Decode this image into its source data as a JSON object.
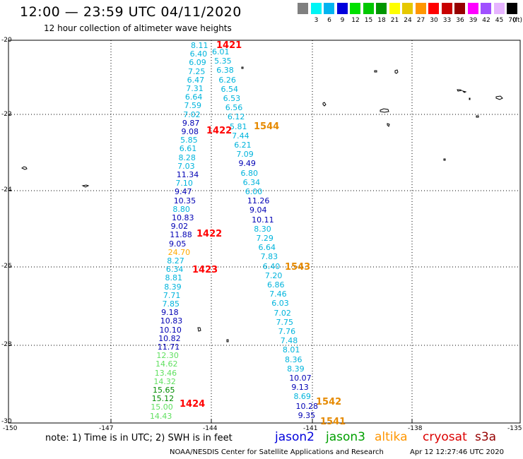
{
  "header": {
    "title": "12:00 — 23:59 UTC 04/11/2020",
    "subtitle": "12 hour collection of altimeter wave heights"
  },
  "scale": {
    "swatches": [
      {
        "color": "#808080",
        "label": ""
      },
      {
        "color": "#00f5f5",
        "label": "3"
      },
      {
        "color": "#00b4f0",
        "label": "6"
      },
      {
        "color": "#0000dc",
        "label": "9"
      },
      {
        "color": "#00e000",
        "label": "12"
      },
      {
        "color": "#00c800",
        "label": "15"
      },
      {
        "color": "#009600",
        "label": "18"
      },
      {
        "color": "#ffff00",
        "label": "21"
      },
      {
        "color": "#e6c800",
        "label": "24"
      },
      {
        "color": "#ff9600",
        "label": "27"
      },
      {
        "color": "#ff0000",
        "label": "30"
      },
      {
        "color": "#c80000",
        "label": "33"
      },
      {
        "color": "#960000",
        "label": "36"
      },
      {
        "color": "#ff00ff",
        "label": "39"
      },
      {
        "color": "#a050ff",
        "label": "42"
      },
      {
        "color": "#e6b4ff",
        "label": "45"
      },
      {
        "color": "#000000",
        "label": "70"
      }
    ],
    "unit": "(ft)"
  },
  "map": {
    "lat_labels": [
      "-20",
      "-22",
      "-24",
      "-26",
      "-28",
      "-30"
    ],
    "lon_labels": [
      "-150",
      "-147",
      "-144",
      "-141",
      "-138",
      "-135"
    ]
  },
  "track_colors": {
    "cyan": "#00b4dc",
    "navy": "#0000b4",
    "lightgreen": "#60e060",
    "green": "#008c00",
    "gold": "#ffaa00",
    "red": "#ff0000",
    "orange": "#e68a00"
  },
  "tracks": {
    "left": [
      {
        "v": "8.11",
        "c": "cyan"
      },
      {
        "v": "6.40",
        "c": "cyan"
      },
      {
        "v": "6.09",
        "c": "cyan"
      },
      {
        "v": "7.25",
        "c": "cyan"
      },
      {
        "v": "6.47",
        "c": "cyan"
      },
      {
        "v": "7.31",
        "c": "cyan"
      },
      {
        "v": "6.64",
        "c": "cyan"
      },
      {
        "v": "7.59",
        "c": "cyan"
      },
      {
        "v": "7.02",
        "c": "cyan"
      },
      {
        "v": "9.87",
        "c": "navy"
      },
      {
        "v": "9.08",
        "c": "navy"
      },
      {
        "v": "5.85",
        "c": "cyan"
      },
      {
        "v": "6.61",
        "c": "cyan"
      },
      {
        "v": "8.28",
        "c": "cyan"
      },
      {
        "v": "7.03",
        "c": "cyan"
      },
      {
        "v": "11.34",
        "c": "navy"
      },
      {
        "v": "7.10",
        "c": "cyan"
      },
      {
        "v": "9.47",
        "c": "navy"
      },
      {
        "v": "10.35",
        "c": "navy"
      },
      {
        "v": "8.80",
        "c": "cyan"
      },
      {
        "v": "10.83",
        "c": "navy"
      },
      {
        "v": "9.02",
        "c": "navy"
      },
      {
        "v": "11.88",
        "c": "navy"
      },
      {
        "v": "9.05",
        "c": "navy"
      },
      {
        "v": "24.70",
        "c": "gold"
      },
      {
        "v": "8.27",
        "c": "cyan"
      },
      {
        "v": "6.34",
        "c": "cyan"
      },
      {
        "v": "8.81",
        "c": "cyan"
      },
      {
        "v": "8.39",
        "c": "cyan"
      },
      {
        "v": "7.71",
        "c": "cyan"
      },
      {
        "v": "7.85",
        "c": "cyan"
      },
      {
        "v": "9.18",
        "c": "navy"
      },
      {
        "v": "10.83",
        "c": "navy"
      },
      {
        "v": "10.10",
        "c": "navy"
      },
      {
        "v": "10.82",
        "c": "navy"
      },
      {
        "v": "11.71",
        "c": "navy"
      },
      {
        "v": "12.30",
        "c": "lightgreen"
      },
      {
        "v": "14.62",
        "c": "lightgreen"
      },
      {
        "v": "13.46",
        "c": "lightgreen"
      },
      {
        "v": "14.32",
        "c": "lightgreen"
      },
      {
        "v": "15.65",
        "c": "green"
      },
      {
        "v": "15.12",
        "c": "green"
      },
      {
        "v": "15.00",
        "c": "lightgreen"
      },
      {
        "v": "14.43",
        "c": "lightgreen"
      }
    ],
    "right": [
      {
        "v": "6.01",
        "c": "cyan"
      },
      {
        "v": "5.35",
        "c": "cyan"
      },
      {
        "v": "6.38",
        "c": "cyan"
      },
      {
        "v": "6.26",
        "c": "cyan"
      },
      {
        "v": "6.54",
        "c": "cyan"
      },
      {
        "v": "6.53",
        "c": "cyan"
      },
      {
        "v": "6.56",
        "c": "cyan"
      },
      {
        "v": "6.12",
        "c": "cyan"
      },
      {
        "v": "5.81",
        "c": "cyan"
      },
      {
        "v": "7.44",
        "c": "cyan"
      },
      {
        "v": "6.21",
        "c": "cyan"
      },
      {
        "v": "7.09",
        "c": "cyan"
      },
      {
        "v": "9.49",
        "c": "navy"
      },
      {
        "v": "6.80",
        "c": "cyan"
      },
      {
        "v": "6.34",
        "c": "cyan"
      },
      {
        "v": "6.00",
        "c": "cyan"
      },
      {
        "v": "11.26",
        "c": "navy"
      },
      {
        "v": "9.04",
        "c": "navy"
      },
      {
        "v": "10.11",
        "c": "navy"
      },
      {
        "v": "8.30",
        "c": "cyan"
      },
      {
        "v": "7.29",
        "c": "cyan"
      },
      {
        "v": "6.64",
        "c": "cyan"
      },
      {
        "v": "7.83",
        "c": "cyan"
      },
      {
        "v": "6.40",
        "c": "cyan"
      },
      {
        "v": "7.20",
        "c": "cyan"
      },
      {
        "v": "6.86",
        "c": "cyan"
      },
      {
        "v": "7.46",
        "c": "cyan"
      },
      {
        "v": "6.03",
        "c": "cyan"
      },
      {
        "v": "7.02",
        "c": "cyan"
      },
      {
        "v": "7.75",
        "c": "cyan"
      },
      {
        "v": "7.76",
        "c": "cyan"
      },
      {
        "v": "7.48",
        "c": "cyan"
      },
      {
        "v": "8.01",
        "c": "cyan"
      },
      {
        "v": "8.36",
        "c": "cyan"
      },
      {
        "v": "8.39",
        "c": "cyan"
      },
      {
        "v": "10.07",
        "c": "navy"
      },
      {
        "v": "9.13",
        "c": "navy"
      },
      {
        "v": "8.69",
        "c": "cyan"
      },
      {
        "v": "10.28",
        "c": "navy"
      },
      {
        "v": "9.35",
        "c": "navy"
      }
    ]
  },
  "time_labels": [
    {
      "t": "1421",
      "c": "red"
    },
    {
      "t": "1422",
      "c": "red"
    },
    {
      "t": "1422",
      "c": "red"
    },
    {
      "t": "1423",
      "c": "red"
    },
    {
      "t": "1424",
      "c": "red"
    },
    {
      "t": "1544",
      "c": "orange"
    },
    {
      "t": "1543",
      "c": "orange"
    },
    {
      "t": "1542",
      "c": "orange"
    },
    {
      "t": "1541",
      "c": "orange"
    }
  ],
  "footer": {
    "note": "note:  1) Time is in UTC;  2) SWH is in feet",
    "satellites": [
      {
        "name": "jason2",
        "color": "#0000dc"
      },
      {
        "name": "jason3",
        "color": "#00a000"
      },
      {
        "name": "altika",
        "color": "#ff9600"
      },
      {
        "name": "cryosat",
        "color": "#dc0000"
      },
      {
        "name": "s3a",
        "color": "#960000"
      }
    ],
    "credit": "NOAA/NESDIS Center for Satellite Applications and Research",
    "timestamp": "Apr 12 12:27:46 UTC 2020"
  }
}
